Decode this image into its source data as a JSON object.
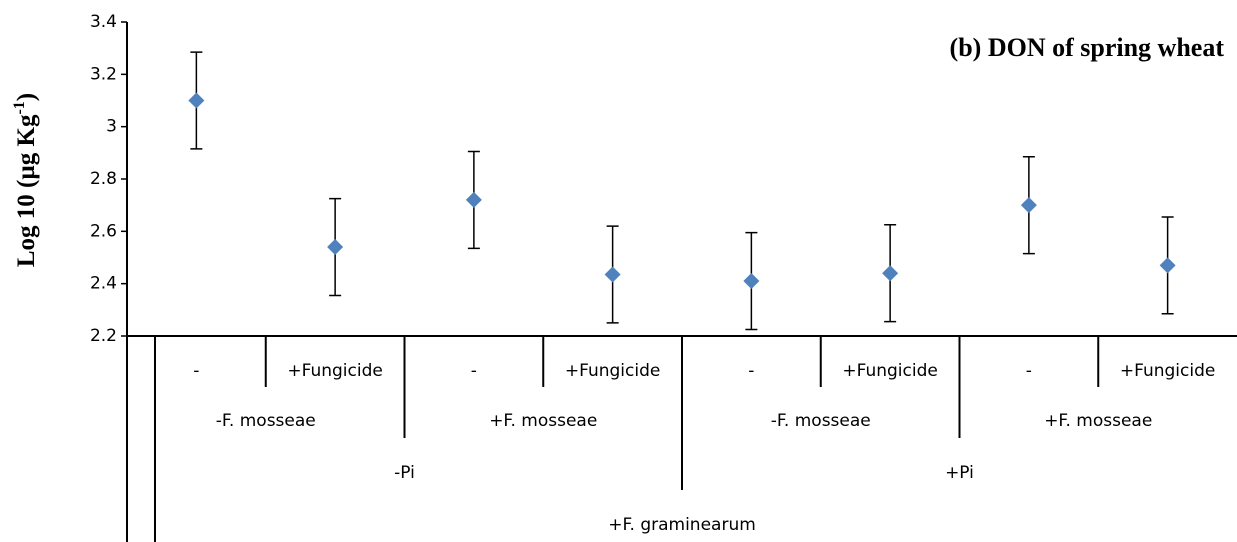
{
  "chart_data": {
    "type": "scatter",
    "title": "(b) DON of spring wheat",
    "y_label": {
      "text": "Log 10 (µg Kg",
      "sup": "-1",
      "end": ")"
    },
    "categories": [
      "-",
      "+Fungicide",
      "-",
      "+Fungicide",
      "-",
      "+Fungicide",
      "-",
      "+Fungicide"
    ],
    "category_groups": [
      [
        "-F. mosseae",
        "+F. mosseae",
        "-F. mosseae",
        "+F. mosseae"
      ],
      [
        "-Pi",
        "+Pi"
      ],
      [
        "+F. graminearum"
      ]
    ],
    "series": [
      {
        "color": "#4f81bd",
        "error_color": "#000000",
        "values": [
          3.1,
          2.54,
          2.72,
          2.435,
          2.41,
          2.44,
          2.7,
          2.47
        ],
        "errors": [
          0.185,
          0.185,
          0.185,
          0.185,
          0.185,
          0.185,
          0.185,
          0.185
        ]
      }
    ],
    "ylim": [
      2.2,
      3.4
    ],
    "yticks": [
      2.2,
      2.4,
      2.6,
      2.8,
      3,
      3.2,
      3.4
    ]
  }
}
